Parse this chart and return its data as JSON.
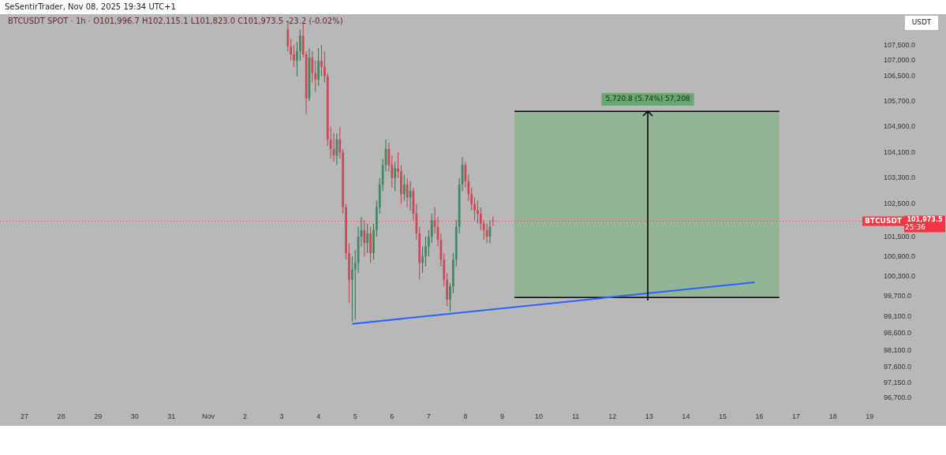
{
  "chart_data": {
    "type": "candlestick",
    "title": "BTCUSDT SPOT · 1h · O101,996.7 H102,115.1 L101,823.0 C101,973.5 -23.2 (-0.02%)",
    "annotations": [
      "SeSentirTrader, Nov 08, 2025 19:34 UTC+1",
      "USDT",
      "101,973.5",
      "25:36",
      "5,720.8 (5.74%) 57,208"
    ],
    "log": true,
    "xlim": [
      "2025-10-26T08:00",
      "2025-11-19T04:00"
    ],
    "xticks": [
      {
        "value": "2025-10-27",
        "label": "27"
      },
      {
        "value": "2025-10-28",
        "label": "28"
      },
      {
        "value": "2025-10-29",
        "label": "29"
      },
      {
        "value": "2025-10-30",
        "label": "30"
      },
      {
        "value": "2025-10-31",
        "label": "31"
      },
      {
        "value": "2025-11-01",
        "label": "Nov"
      },
      {
        "value": "2025-11-02",
        "label": "2"
      },
      {
        "value": "2025-11-03",
        "label": "3"
      },
      {
        "value": "2025-11-04",
        "label": "4"
      },
      {
        "value": "2025-11-05",
        "label": "5"
      },
      {
        "value": "2025-11-06",
        "label": "6"
      },
      {
        "value": "2025-11-07",
        "label": "7"
      },
      {
        "value": "2025-11-08",
        "label": "8"
      },
      {
        "value": "2025-11-09",
        "label": "9"
      },
      {
        "value": "2025-11-10",
        "label": "10"
      },
      {
        "value": "2025-11-11",
        "label": "11"
      },
      {
        "value": "2025-11-12",
        "label": "12"
      },
      {
        "value": "2025-11-13",
        "label": "13"
      },
      {
        "value": "2025-11-14",
        "label": "14"
      },
      {
        "value": "2025-11-15",
        "label": "15"
      },
      {
        "value": "2025-11-16",
        "label": "16"
      },
      {
        "value": "2025-11-17",
        "label": "17"
      },
      {
        "value": "2025-11-18",
        "label": "18"
      },
      {
        "value": "2025-11-19",
        "label": "19"
      }
    ],
    "ylim": [
      96700,
      108500
    ],
    "yticks": [
      {
        "value": 96700,
        "label": "96,700.0"
      },
      {
        "value": 97150,
        "label": "97,150.0"
      },
      {
        "value": 97600,
        "label": "97,600.0"
      },
      {
        "value": 98100,
        "label": "98,100.0"
      },
      {
        "value": 98600,
        "label": "98,600.0"
      },
      {
        "value": 99100,
        "label": "99,100.0"
      },
      {
        "value": 99700,
        "label": "99,700.0"
      },
      {
        "value": 100300,
        "label": "100,300.0"
      },
      {
        "value": 100900,
        "label": "100,900.0"
      },
      {
        "value": 101500,
        "label": "101,500.0"
      },
      {
        "value": 102500,
        "label": "102,500.0"
      },
      {
        "value": 103300,
        "label": "103,300.0"
      },
      {
        "value": 104100,
        "label": "104,100.0"
      },
      {
        "value": 104900,
        "label": "104,900.0"
      },
      {
        "value": 105700,
        "label": "105,700.0"
      },
      {
        "value": 106500,
        "label": "106,500.0"
      },
      {
        "value": 107000,
        "label": "107,000.0"
      },
      {
        "value": 107500,
        "label": "107,500.0"
      }
    ],
    "ref_lines": [
      {
        "axis": "y",
        "value": 101973.5,
        "label": "BTCUSDT",
        "color": "#f23645",
        "line_style": "dotted"
      }
    ],
    "series": [
      {
        "type": "line",
        "x": [
          "2025-11-04T22:00",
          "2025-11-15T21:00"
        ],
        "values": [
          98880,
          100120
        ],
        "color": "#2962ff"
      },
      {
        "type": "line",
        "x": [
          "2025-11-09T08:00",
          "2025-11-16T13:00"
        ],
        "values": [
          99665,
          99665
        ],
        "color": "#000000"
      },
      {
        "type": "area",
        "x": [
          "2025-11-09T08:00",
          "2025-11-16T13:00"
        ],
        "values": [
          105385.8,
          105385.8
        ],
        "color": "#93b596"
      },
      {
        "type": "candlestick",
        "x": [
          "2025-11-03T04:00",
          "2025-11-03T06:00",
          "2025-11-03T08:00",
          "2025-11-03T10:00",
          "2025-11-03T12:00",
          "2025-11-03T14:00",
          "2025-11-03T16:00",
          "2025-11-03T18:00",
          "2025-11-03T20:00",
          "2025-11-03T22:00",
          "2025-11-04T00:00",
          "2025-11-04T02:00",
          "2025-11-04T04:00",
          "2025-11-04T06:00",
          "2025-11-04T08:00",
          "2025-11-04T10:00",
          "2025-11-04T12:00",
          "2025-11-04T14:00",
          "2025-11-04T16:00",
          "2025-11-04T18:00",
          "2025-11-04T20:00",
          "2025-11-04T22:00",
          "2025-11-05T00:00",
          "2025-11-05T02:00",
          "2025-11-05T04:00",
          "2025-11-05T06:00",
          "2025-11-05T08:00",
          "2025-11-05T10:00",
          "2025-11-05T12:00",
          "2025-11-05T14:00",
          "2025-11-05T16:00",
          "2025-11-05T18:00",
          "2025-11-05T20:00",
          "2025-11-05T22:00",
          "2025-11-06T00:00",
          "2025-11-06T02:00",
          "2025-11-06T04:00",
          "2025-11-06T06:00",
          "2025-11-06T08:00",
          "2025-11-06T10:00",
          "2025-11-06T12:00",
          "2025-11-06T14:00",
          "2025-11-06T16:00",
          "2025-11-06T18:00",
          "2025-11-06T20:00",
          "2025-11-06T22:00",
          "2025-11-07T00:00",
          "2025-11-07T02:00",
          "2025-11-07T04:00",
          "2025-11-07T06:00",
          "2025-11-07T08:00",
          "2025-11-07T10:00",
          "2025-11-07T12:00",
          "2025-11-07T14:00",
          "2025-11-07T16:00",
          "2025-11-07T18:00",
          "2025-11-07T20:00",
          "2025-11-07T22:00",
          "2025-11-08T00:00",
          "2025-11-08T02:00",
          "2025-11-08T04:00",
          "2025-11-08T06:00",
          "2025-11-08T08:00",
          "2025-11-08T10:00",
          "2025-11-08T12:00",
          "2025-11-08T14:00",
          "2025-11-08T16:00",
          "2025-11-08T18:00"
        ],
        "ohlc": [
          [
            108000,
            108300,
            107300,
            107450
          ],
          [
            107450,
            107700,
            107000,
            107200
          ],
          [
            107200,
            107500,
            106800,
            107000
          ],
          [
            107000,
            107600,
            106500,
            107300
          ],
          [
            107300,
            108000,
            107000,
            107800
          ],
          [
            107800,
            108200,
            107100,
            107200
          ],
          [
            107200,
            107300,
            105300,
            105800
          ],
          [
            105800,
            107400,
            105700,
            107100
          ],
          [
            107100,
            107300,
            106300,
            106600
          ],
          [
            106600,
            107000,
            106000,
            106400
          ],
          [
            106400,
            107400,
            106200,
            107000
          ],
          [
            107000,
            107500,
            106500,
            106800
          ],
          [
            106800,
            107300,
            106300,
            106500
          ],
          [
            106500,
            106600,
            104300,
            104500
          ],
          [
            104500,
            104900,
            103900,
            104200
          ],
          [
            104200,
            104700,
            103800,
            104000
          ],
          [
            104000,
            104700,
            103700,
            104500
          ],
          [
            104500,
            104900,
            103900,
            104100
          ],
          [
            104100,
            104200,
            102200,
            102400
          ],
          [
            102400,
            102500,
            100800,
            101000
          ],
          [
            101000,
            101300,
            99500,
            100200
          ],
          [
            100200,
            100900,
            98950,
            100500
          ],
          [
            100500,
            101100,
            99000,
            100700
          ],
          [
            100700,
            101800,
            100400,
            101500
          ],
          [
            101500,
            102100,
            101200,
            101700
          ],
          [
            101700,
            102000,
            100900,
            101300
          ],
          [
            101300,
            101900,
            101000,
            101600
          ],
          [
            101600,
            101800,
            100700,
            101000
          ],
          [
            101000,
            101900,
            100800,
            101700
          ],
          [
            101700,
            102600,
            101500,
            102400
          ],
          [
            102400,
            103300,
            102200,
            103100
          ],
          [
            103100,
            103900,
            102900,
            103700
          ],
          [
            103700,
            104500,
            103500,
            104200
          ],
          [
            104200,
            104400,
            103500,
            103700
          ],
          [
            103700,
            104000,
            103000,
            103300
          ],
          [
            103300,
            103800,
            102900,
            103600
          ],
          [
            103600,
            104100,
            103300,
            103500
          ],
          [
            103500,
            103700,
            102500,
            102800
          ],
          [
            102800,
            103400,
            102600,
            103100
          ],
          [
            103100,
            103300,
            102400,
            102700
          ],
          [
            102700,
            103200,
            102300,
            102900
          ],
          [
            102900,
            103000,
            102000,
            102200
          ],
          [
            102200,
            102500,
            101400,
            101600
          ],
          [
            101600,
            101800,
            100200,
            100700
          ],
          [
            100700,
            101200,
            100400,
            100900
          ],
          [
            100900,
            101500,
            100600,
            101200
          ],
          [
            101200,
            101700,
            100900,
            101500
          ],
          [
            101500,
            102200,
            101300,
            102000
          ],
          [
            102000,
            102400,
            101600,
            101800
          ],
          [
            101800,
            102100,
            101200,
            101400
          ],
          [
            101400,
            101600,
            100600,
            100800
          ],
          [
            100800,
            101000,
            100000,
            100200
          ],
          [
            100200,
            100400,
            99400,
            99600
          ],
          [
            99600,
            100100,
            99250,
            100000
          ],
          [
            100000,
            101000,
            99800,
            100800
          ],
          [
            100800,
            102000,
            100600,
            101800
          ],
          [
            101800,
            103300,
            101600,
            103100
          ],
          [
            103100,
            103950,
            102900,
            103700
          ],
          [
            103700,
            103800,
            103000,
            103200
          ],
          [
            103200,
            103400,
            102600,
            102800
          ],
          [
            102800,
            103000,
            102300,
            102500
          ],
          [
            102500,
            102700,
            102000,
            102300
          ],
          [
            102300,
            102600,
            101900,
            102200
          ],
          [
            102200,
            102400,
            101700,
            101900
          ],
          [
            101900,
            102000,
            101400,
            101700
          ],
          [
            101700,
            101900,
            101300,
            101500
          ],
          [
            101500,
            102000,
            101300,
            101800
          ],
          [
            101996.7,
            102115.1,
            101823,
            101973.5
          ]
        ]
      }
    ]
  }
}
